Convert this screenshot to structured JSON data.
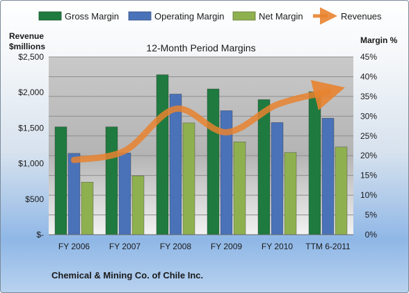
{
  "chart_data": {
    "type": "bar",
    "title": "12-Month Period Margins",
    "company": "Chemical & Mining Co. of Chile Inc.",
    "left_axis_label_line1": "Revenue",
    "left_axis_label_line2": "$millions",
    "right_axis_label": "Margin %",
    "categories": [
      "FY 2006",
      "FY 2007",
      "FY 2008",
      "FY 2009",
      "FY 2010",
      "TTM 6-2011"
    ],
    "left_ylim": [
      0,
      2500
    ],
    "left_ticks": [
      "$-",
      "$500",
      "$1,000",
      "$1,500",
      "$2,000",
      "$2,500"
    ],
    "right_ylim": [
      0,
      45
    ],
    "right_ticks": [
      "0%",
      "5%",
      "10%",
      "15%",
      "20%",
      "25%",
      "30%",
      "35%",
      "40%",
      "45%"
    ],
    "grid": "horizontal",
    "legend_position": "top",
    "series": [
      {
        "name": "Gross Margin",
        "kind": "bar",
        "axis": "right",
        "color": "#1f7a3f",
        "values": [
          27.3,
          27.3,
          40.5,
          36.9,
          34.2,
          36.2
        ]
      },
      {
        "name": "Operating Margin",
        "kind": "bar",
        "axis": "right",
        "color": "#4a72b8",
        "values": [
          20.6,
          20.7,
          35.6,
          31.4,
          28.4,
          29.5
        ]
      },
      {
        "name": "Net Margin",
        "kind": "bar",
        "axis": "right",
        "color": "#8fb04f",
        "values": [
          13.3,
          14.9,
          28.3,
          23.5,
          20.8,
          22.2
        ]
      },
      {
        "name": "Revenues",
        "kind": "line",
        "axis": "left",
        "color": "#e8832f",
        "values": [
          1050,
          1180,
          1770,
          1440,
          1830,
          2010
        ]
      }
    ]
  }
}
